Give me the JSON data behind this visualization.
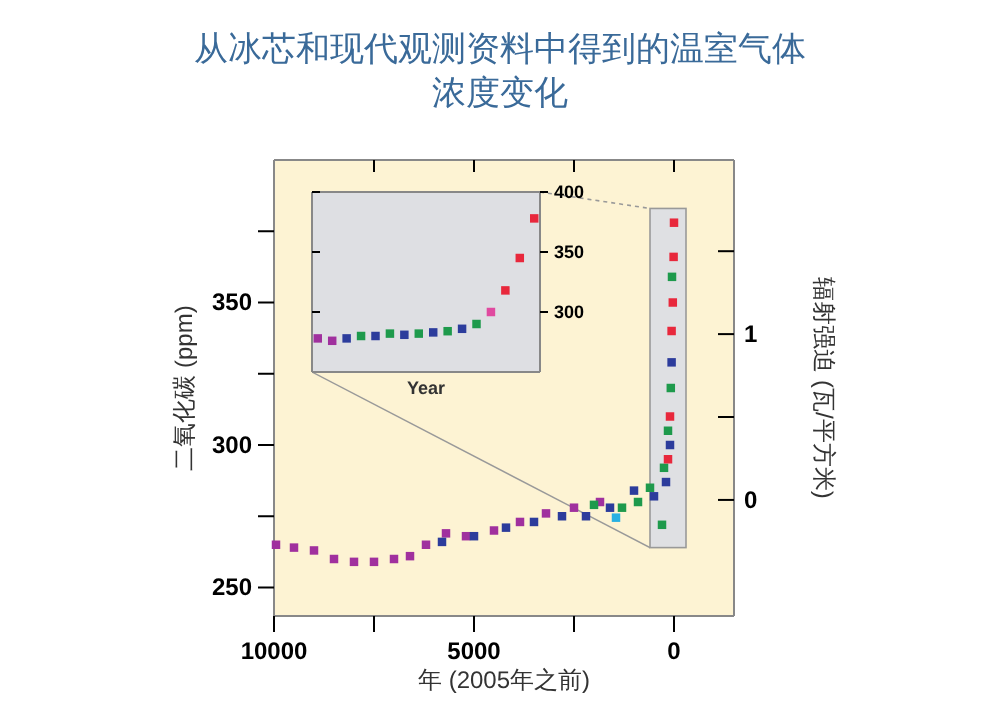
{
  "chart_data": [
    {
      "type": "scatter",
      "title": "从冰芯和现代观测资料中得到的温室气体浓度变化",
      "xlabel": "年 (2005年之前)",
      "ylabel": "二氧化碳 (ppm)",
      "y2label": "辐射强迫 (瓦/平方米)",
      "marker": "square",
      "xlim": [
        10000,
        -1500
      ],
      "xticks": [
        10000,
        {
          "value": 7500,
          "label": null
        },
        5000,
        {
          "value": 2500,
          "label": null
        },
        0
      ],
      "ylim": [
        240,
        400
      ],
      "yticks": [
        250,
        {
          "value": 275,
          "label": null
        },
        300,
        {
          "value": 325,
          "label": null
        },
        350,
        {
          "value": 375,
          "label": null
        }
      ],
      "bands": [
        {
          "axis": "x",
          "from": 600,
          "to": -300,
          "color": "#dfe0e3"
        }
      ],
      "y2lim": [
        -0.7,
        2.05
      ],
      "y2ticks": [
        0,
        {
          "value": 0.5,
          "label": null
        },
        1,
        {
          "value": 1.5,
          "label": null
        }
      ],
      "series": [
        {
          "color": "#a0309e",
          "x": [
            9950,
            9500,
            9000,
            8500,
            8000,
            7500,
            7000,
            6600,
            6200,
            5700,
            5200,
            4500,
            3850,
            3200,
            2500,
            1850
          ],
          "values": [
            265,
            264,
            263,
            260,
            259,
            259,
            260,
            261,
            265,
            269,
            268,
            270,
            273,
            276,
            278,
            280
          ]
        },
        {
          "color": "#2c3c9c",
          "x": [
            5800,
            5000,
            4200,
            3500,
            2800,
            2200,
            1600,
            1000,
            500,
            200,
            100,
            60
          ],
          "values": [
            266,
            268,
            271,
            273,
            275,
            275,
            278,
            284,
            282,
            287,
            300,
            329
          ]
        },
        {
          "color": "#1e9a4c",
          "x": [
            2000,
            1300,
            900,
            600,
            300,
            250,
            150,
            80,
            50
          ],
          "values": [
            279,
            278,
            280,
            285,
            272,
            292,
            305,
            320,
            359
          ]
        },
        {
          "color": "#27b0e2",
          "x": [
            1450
          ],
          "values": [
            274.5
          ]
        },
        {
          "color": "#e8283c",
          "x": [
            150,
            100,
            60,
            30,
            10,
            0
          ],
          "values": [
            295,
            310,
            340,
            350,
            366,
            378
          ]
        }
      ]
    },
    {
      "type": "scatter",
      "xlabel": "Year",
      "marker": "square",
      "tick_labels": "y",
      "categories": [
        null,
        null,
        null,
        null,
        null,
        null,
        null,
        null,
        null,
        null,
        null,
        null,
        null,
        null,
        null,
        null
      ],
      "ylim": [
        250,
        400
      ],
      "yticks": [
        300,
        350,
        400
      ],
      "series": [
        {
          "color": "#a0309e",
          "values": [
            278,
            276,
            null,
            null,
            null,
            null,
            null,
            null,
            null,
            null,
            null,
            null,
            null,
            null,
            null,
            null
          ]
        },
        {
          "color": "#2c3c9c",
          "values": [
            null,
            null,
            278,
            null,
            280,
            null,
            281,
            null,
            283,
            null,
            286,
            null,
            null,
            null,
            null,
            null
          ]
        },
        {
          "color": "#1e9a4c",
          "values": [
            null,
            null,
            null,
            280,
            null,
            282,
            null,
            282,
            null,
            284,
            null,
            290,
            null,
            null,
            null,
            null
          ]
        },
        {
          "color": "#e04aa0",
          "values": [
            null,
            null,
            null,
            null,
            null,
            null,
            null,
            null,
            null,
            null,
            null,
            null,
            300,
            null,
            null,
            null
          ]
        },
        {
          "color": "#e8283c",
          "values": [
            null,
            null,
            null,
            null,
            null,
            null,
            null,
            null,
            null,
            null,
            null,
            null,
            null,
            318,
            345,
            378
          ]
        }
      ]
    }
  ]
}
